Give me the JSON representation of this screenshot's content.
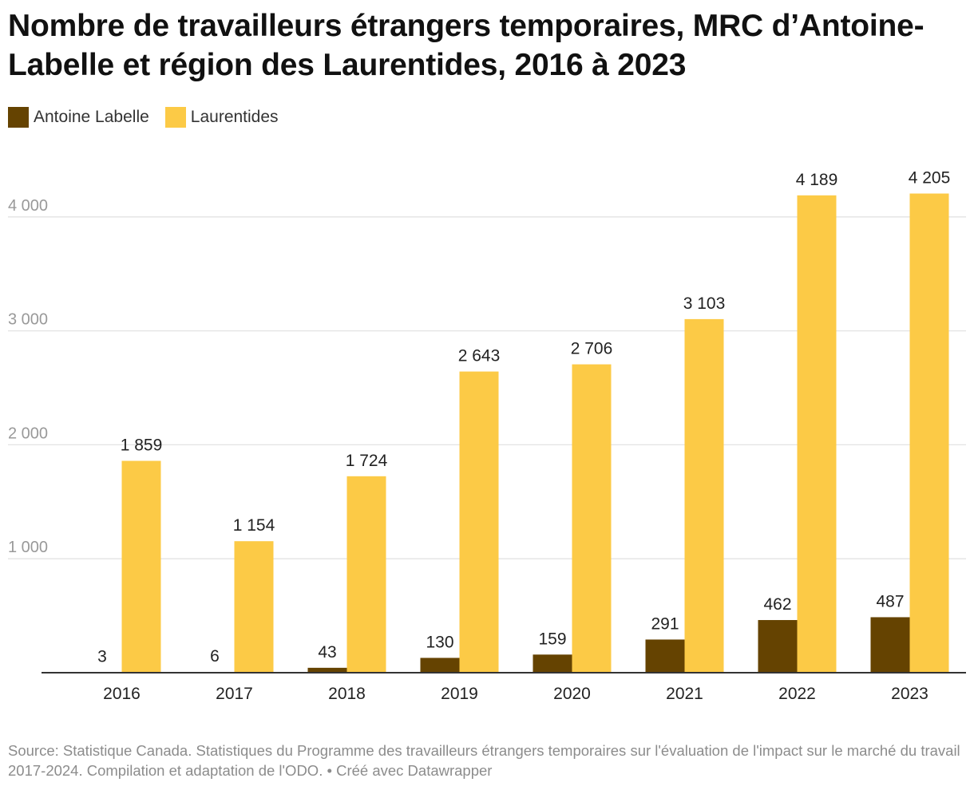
{
  "title": "Nombre de travailleurs étrangers temporaires, MRC d’Antoine-Labelle et région des Laurentides, 2016 à 2023",
  "source": "Source: Statistique Canada. Statistiques du Programme des travailleurs étrangers temporaires sur l'évaluation de l'impact sur le marché du travail 2017-2024. Compilation et adaptation de l'ODO. • Créé avec Datawrapper",
  "colors": {
    "antoine_labelle": "#654301",
    "laurentides": "#fcca46",
    "grid": "#e3e3e3",
    "axis": "#333333"
  },
  "chart_data": {
    "type": "bar",
    "title": "Nombre de travailleurs étrangers temporaires, MRC d’Antoine-Labelle et région des Laurentides, 2016 à 2023",
    "categories": [
      "2016",
      "2017",
      "2018",
      "2019",
      "2020",
      "2021",
      "2022",
      "2023"
    ],
    "series": [
      {
        "name": "Antoine Labelle",
        "color": "#654301",
        "values": [
          3,
          6,
          43,
          130,
          159,
          291,
          462,
          487
        ],
        "labels": [
          "3",
          "6",
          "43",
          "130",
          "159",
          "291",
          "462",
          "487"
        ]
      },
      {
        "name": "Laurentides",
        "color": "#fcca46",
        "values": [
          1859,
          1154,
          1724,
          2643,
          2706,
          3103,
          4189,
          4205
        ],
        "labels": [
          "1 859",
          "1 154",
          "1 724",
          "2 643",
          "2 706",
          "3 103",
          "4 189",
          "4 205"
        ]
      }
    ],
    "yticks": [
      1000,
      2000,
      3000,
      4000
    ],
    "ytick_labels": [
      "1 000",
      "2 000",
      "3 000",
      "4 000"
    ],
    "ylim": [
      0,
      4400
    ],
    "xlabel": "",
    "ylabel": "",
    "grid": true,
    "legend_position": "top-left"
  }
}
